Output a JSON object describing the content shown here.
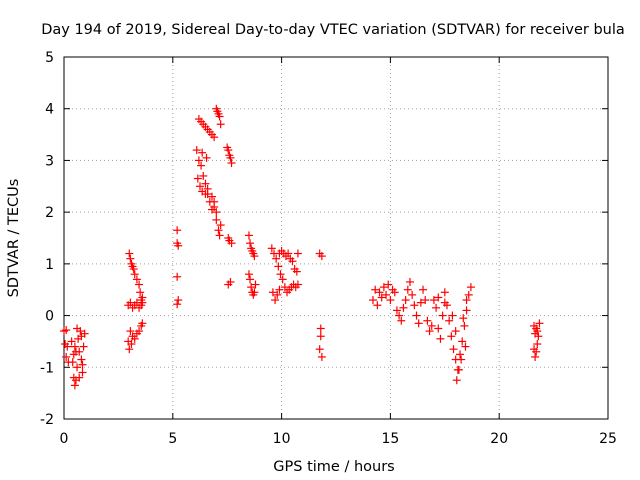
{
  "chart_data": {
    "type": "scatter",
    "title": "Day 194 of 2019, Sidereal Day-to-day VTEC variation (SDTVAR) for receiver bula",
    "xlabel": "GPS time / hours",
    "ylabel": "SDTVAR / TECUs",
    "xlim": [
      0,
      25
    ],
    "ylim": [
      -2,
      5
    ],
    "xticks": [
      0,
      5,
      10,
      15,
      20,
      25
    ],
    "yticks": [
      -2,
      -1,
      0,
      1,
      2,
      3,
      4,
      5
    ],
    "grid": true,
    "legend": "none",
    "marker": "+",
    "color": "#ff0000",
    "series": [
      {
        "name": "bula",
        "points": [
          [
            0.0,
            -0.3
          ],
          [
            0.05,
            -0.55
          ],
          [
            0.1,
            -0.8
          ],
          [
            0.15,
            -0.6
          ],
          [
            0.2,
            -0.9
          ],
          [
            0.1,
            -0.28
          ],
          [
            0.35,
            -0.5
          ],
          [
            0.4,
            -0.9
          ],
          [
            0.45,
            -1.2
          ],
          [
            0.5,
            -1.35
          ],
          [
            0.55,
            -0.7
          ],
          [
            0.6,
            -1.0
          ],
          [
            0.65,
            -0.45
          ],
          [
            0.7,
            -1.2
          ],
          [
            0.75,
            -0.3
          ],
          [
            0.8,
            -0.85
          ],
          [
            0.85,
            -1.1
          ],
          [
            0.9,
            -0.6
          ],
          [
            0.95,
            -0.35
          ],
          [
            0.6,
            -0.25
          ],
          [
            0.7,
            -0.7
          ],
          [
            0.8,
            -0.4
          ],
          [
            0.85,
            -0.95
          ],
          [
            0.5,
            -0.6
          ],
          [
            0.45,
            -0.75
          ],
          [
            0.55,
            -1.25
          ],
          [
            2.95,
            -0.5
          ],
          [
            3.0,
            -0.65
          ],
          [
            3.05,
            -0.3
          ],
          [
            3.1,
            -0.55
          ],
          [
            3.15,
            -0.4
          ],
          [
            3.25,
            -0.45
          ],
          [
            3.35,
            -0.35
          ],
          [
            3.45,
            -0.3
          ],
          [
            3.55,
            -0.2
          ],
          [
            3.6,
            -0.15
          ],
          [
            2.95,
            0.2
          ],
          [
            3.05,
            0.25
          ],
          [
            3.15,
            0.15
          ],
          [
            3.25,
            0.2
          ],
          [
            3.35,
            0.25
          ],
          [
            3.45,
            0.15
          ],
          [
            3.55,
            0.2
          ],
          [
            3.6,
            0.25
          ],
          [
            3.0,
            1.2
          ],
          [
            3.05,
            1.1
          ],
          [
            3.1,
            1.0
          ],
          [
            3.15,
            0.95
          ],
          [
            3.2,
            0.9
          ],
          [
            3.25,
            0.8
          ],
          [
            3.35,
            0.7
          ],
          [
            3.45,
            0.6
          ],
          [
            3.5,
            0.45
          ],
          [
            3.55,
            0.3
          ],
          [
            3.6,
            0.35
          ],
          [
            5.2,
            1.65
          ],
          [
            5.2,
            1.4
          ],
          [
            5.25,
            1.35
          ],
          [
            5.2,
            0.75
          ],
          [
            5.25,
            0.3
          ],
          [
            5.2,
            0.22
          ],
          [
            6.1,
            3.2
          ],
          [
            6.2,
            3.0
          ],
          [
            6.3,
            2.9
          ],
          [
            6.35,
            3.15
          ],
          [
            6.4,
            2.7
          ],
          [
            6.5,
            2.55
          ],
          [
            6.55,
            3.05
          ],
          [
            6.6,
            2.35
          ],
          [
            6.7,
            2.2
          ],
          [
            6.8,
            2.05
          ],
          [
            6.9,
            2.2
          ],
          [
            7.0,
            1.85
          ],
          [
            7.1,
            1.65
          ],
          [
            7.15,
            1.55
          ],
          [
            7.2,
            1.75
          ],
          [
            6.15,
            2.65
          ],
          [
            6.25,
            2.5
          ],
          [
            6.35,
            2.4
          ],
          [
            6.5,
            2.35
          ],
          [
            6.6,
            2.45
          ],
          [
            6.8,
            2.3
          ],
          [
            6.9,
            2.1
          ],
          [
            7.0,
            2.0
          ],
          [
            6.2,
            3.8
          ],
          [
            6.3,
            3.75
          ],
          [
            6.4,
            3.7
          ],
          [
            6.5,
            3.65
          ],
          [
            6.6,
            3.6
          ],
          [
            6.7,
            3.55
          ],
          [
            6.8,
            3.5
          ],
          [
            6.9,
            3.45
          ],
          [
            7.0,
            4.0
          ],
          [
            7.05,
            3.95
          ],
          [
            7.1,
            3.9
          ],
          [
            7.15,
            3.85
          ],
          [
            7.2,
            3.7
          ],
          [
            7.5,
            3.25
          ],
          [
            7.55,
            3.2
          ],
          [
            7.6,
            3.1
          ],
          [
            7.65,
            3.05
          ],
          [
            7.7,
            2.95
          ],
          [
            7.55,
            1.5
          ],
          [
            7.6,
            1.45
          ],
          [
            7.7,
            1.4
          ],
          [
            7.55,
            0.6
          ],
          [
            7.65,
            0.65
          ],
          [
            8.5,
            1.55
          ],
          [
            8.55,
            1.4
          ],
          [
            8.6,
            1.3
          ],
          [
            8.65,
            1.25
          ],
          [
            8.7,
            1.2
          ],
          [
            8.75,
            1.15
          ],
          [
            8.5,
            0.8
          ],
          [
            8.55,
            0.7
          ],
          [
            8.6,
            0.55
          ],
          [
            8.65,
            0.45
          ],
          [
            8.7,
            0.4
          ],
          [
            8.75,
            0.45
          ],
          [
            8.8,
            0.6
          ],
          [
            9.55,
            1.3
          ],
          [
            9.65,
            1.2
          ],
          [
            9.75,
            1.1
          ],
          [
            9.85,
            0.95
          ],
          [
            9.95,
            0.8
          ],
          [
            10.05,
            0.7
          ],
          [
            10.15,
            0.55
          ],
          [
            10.25,
            0.45
          ],
          [
            10.35,
            0.5
          ],
          [
            10.45,
            0.55
          ],
          [
            10.55,
            0.6
          ],
          [
            10.65,
            0.55
          ],
          [
            10.75,
            0.6
          ],
          [
            9.6,
            0.45
          ],
          [
            9.7,
            0.3
          ],
          [
            9.8,
            0.4
          ],
          [
            9.9,
            0.5
          ],
          [
            9.9,
            1.2
          ],
          [
            10.0,
            1.25
          ],
          [
            10.1,
            1.2
          ],
          [
            10.2,
            1.15
          ],
          [
            10.3,
            1.2
          ],
          [
            10.4,
            1.1
          ],
          [
            10.5,
            1.05
          ],
          [
            10.6,
            0.9
          ],
          [
            10.7,
            0.85
          ],
          [
            10.75,
            1.2
          ],
          [
            11.75,
            1.2
          ],
          [
            11.85,
            1.15
          ],
          [
            11.8,
            -0.25
          ],
          [
            11.8,
            -0.4
          ],
          [
            11.75,
            -0.65
          ],
          [
            11.85,
            -0.8
          ],
          [
            14.2,
            0.3
          ],
          [
            14.3,
            0.5
          ],
          [
            14.4,
            0.2
          ],
          [
            14.5,
            0.45
          ],
          [
            14.6,
            0.35
          ],
          [
            14.7,
            0.55
          ],
          [
            14.8,
            0.4
          ],
          [
            14.9,
            0.6
          ],
          [
            15.0,
            0.3
          ],
          [
            15.1,
            0.5
          ],
          [
            15.2,
            0.45
          ],
          [
            15.3,
            0.1
          ],
          [
            15.4,
            0.0
          ],
          [
            15.5,
            -0.1
          ],
          [
            15.6,
            0.15
          ],
          [
            15.7,
            0.3
          ],
          [
            15.8,
            0.5
          ],
          [
            15.9,
            0.65
          ],
          [
            16.0,
            0.4
          ],
          [
            16.1,
            0.2
          ],
          [
            16.2,
            0.0
          ],
          [
            16.3,
            -0.15
          ],
          [
            16.4,
            0.25
          ],
          [
            16.5,
            0.5
          ],
          [
            16.6,
            0.3
          ],
          [
            16.7,
            -0.1
          ],
          [
            16.8,
            -0.3
          ],
          [
            16.9,
            -0.2
          ],
          [
            17.0,
            0.3
          ],
          [
            17.1,
            0.15
          ],
          [
            17.2,
            -0.25
          ],
          [
            17.3,
            -0.45
          ],
          [
            17.4,
            0.0
          ],
          [
            17.5,
            0.45
          ],
          [
            17.6,
            0.2
          ],
          [
            17.7,
            -0.1
          ],
          [
            17.8,
            -0.4
          ],
          [
            17.9,
            -0.65
          ],
          [
            18.0,
            -0.85
          ],
          [
            18.1,
            -1.05
          ],
          [
            18.2,
            -0.75
          ],
          [
            18.3,
            -0.5
          ],
          [
            18.4,
            -0.2
          ],
          [
            18.5,
            0.1
          ],
          [
            18.6,
            0.4
          ],
          [
            18.7,
            0.55
          ],
          [
            17.2,
            0.35
          ],
          [
            17.5,
            0.25
          ],
          [
            17.85,
            0.0
          ],
          [
            18.0,
            -0.3
          ],
          [
            18.05,
            -1.25
          ],
          [
            18.15,
            -1.05
          ],
          [
            18.25,
            -0.85
          ],
          [
            18.45,
            -0.6
          ],
          [
            18.5,
            0.3
          ],
          [
            18.35,
            -0.05
          ],
          [
            21.6,
            -0.2
          ],
          [
            21.65,
            -0.35
          ],
          [
            21.7,
            -0.25
          ],
          [
            21.75,
            -0.3
          ],
          [
            21.8,
            -0.4
          ],
          [
            21.85,
            -0.15
          ],
          [
            21.6,
            -0.65
          ],
          [
            21.65,
            -0.8
          ],
          [
            21.7,
            -0.7
          ],
          [
            21.75,
            -0.55
          ]
        ]
      }
    ]
  }
}
